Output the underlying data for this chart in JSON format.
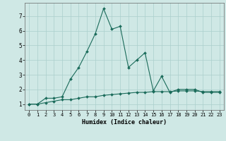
{
  "title": "",
  "xlabel": "Humidex (Indice chaleur)",
  "ylabel": "",
  "bg_color": "#cfe8e5",
  "grid_color": "#aacfcc",
  "line_color": "#1a6b5a",
  "x_ticks": [
    0,
    1,
    2,
    3,
    4,
    5,
    6,
    7,
    8,
    9,
    10,
    11,
    12,
    13,
    14,
    15,
    16,
    17,
    18,
    19,
    20,
    21,
    22,
    23
  ],
  "y_ticks": [
    1,
    2,
    3,
    4,
    5,
    6,
    7
  ],
  "ylim": [
    0.6,
    7.9
  ],
  "xlim": [
    -0.5,
    23.5
  ],
  "line1_x": [
    0,
    1,
    2,
    3,
    4,
    5,
    6,
    7,
    8,
    9,
    10,
    11,
    12,
    13,
    14,
    15,
    16,
    17,
    18,
    19,
    20,
    21,
    22,
    23
  ],
  "line1_y": [
    1.0,
    1.0,
    1.4,
    1.4,
    1.5,
    2.7,
    3.5,
    4.6,
    5.8,
    7.5,
    6.1,
    6.3,
    3.5,
    4.0,
    4.5,
    1.9,
    2.9,
    1.8,
    2.0,
    2.0,
    2.0,
    1.8,
    1.8,
    1.8
  ],
  "line2_x": [
    0,
    1,
    2,
    3,
    4,
    5,
    6,
    7,
    8,
    9,
    10,
    11,
    12,
    13,
    14,
    15,
    16,
    17,
    18,
    19,
    20,
    21,
    22,
    23
  ],
  "line2_y": [
    1.0,
    1.0,
    1.1,
    1.2,
    1.3,
    1.3,
    1.4,
    1.5,
    1.5,
    1.6,
    1.65,
    1.7,
    1.75,
    1.8,
    1.8,
    1.85,
    1.85,
    1.85,
    1.9,
    1.9,
    1.9,
    1.85,
    1.85,
    1.85
  ],
  "tick_fontsize_x": 5.0,
  "tick_fontsize_y": 5.5,
  "xlabel_fontsize": 6.0,
  "linewidth": 0.8,
  "markersize": 2.0
}
